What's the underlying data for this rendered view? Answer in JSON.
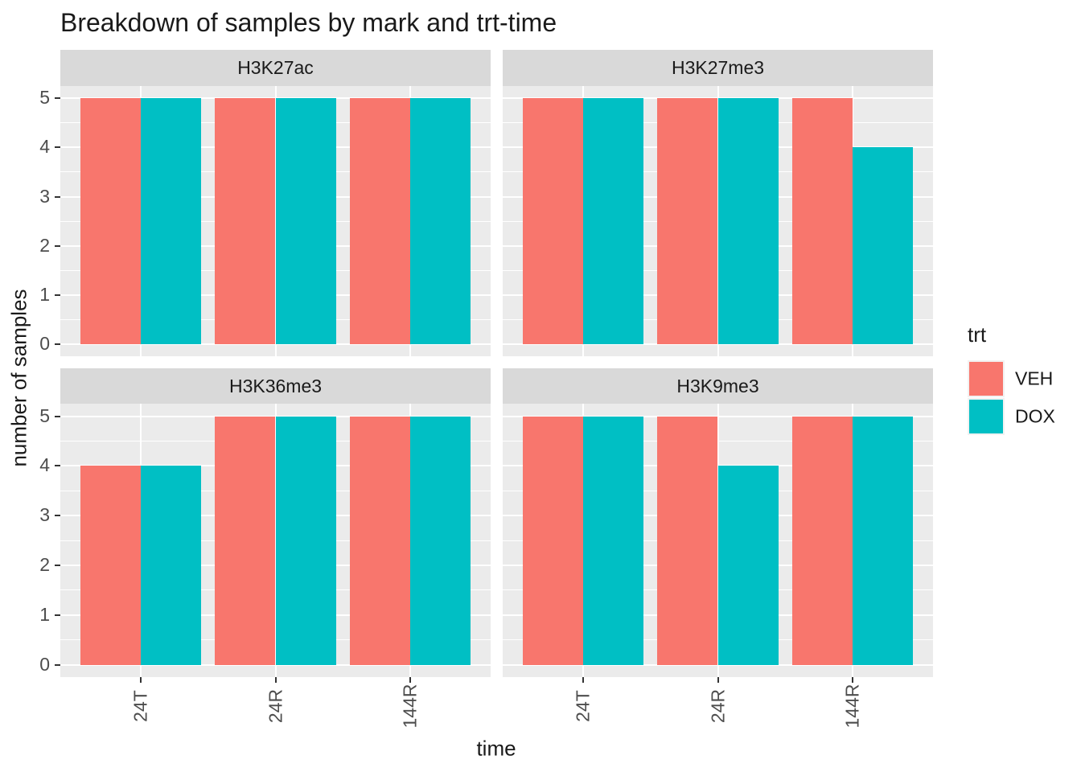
{
  "chart_data": {
    "type": "bar",
    "title": "Breakdown of samples by mark and trt-time",
    "xlabel": "time",
    "ylabel": "number of samples",
    "categories": [
      "24T",
      "24R",
      "144R"
    ],
    "y_ticks": [
      "0",
      "1",
      "2",
      "3",
      "4",
      "5"
    ],
    "ylim": [
      0,
      5
    ],
    "grid": true,
    "legend_position": "right",
    "legend_title": "trt",
    "legend": [
      {
        "label": "VEH",
        "color": "#F8766D"
      },
      {
        "label": "DOX",
        "color": "#00BFC4"
      }
    ],
    "facets": [
      {
        "name": "H3K27ac",
        "series": [
          {
            "name": "VEH",
            "values": [
              5,
              5,
              5
            ]
          },
          {
            "name": "DOX",
            "values": [
              5,
              5,
              5
            ]
          }
        ]
      },
      {
        "name": "H3K27me3",
        "series": [
          {
            "name": "VEH",
            "values": [
              5,
              5,
              5
            ]
          },
          {
            "name": "DOX",
            "values": [
              5,
              5,
              4
            ]
          }
        ]
      },
      {
        "name": "H3K36me3",
        "series": [
          {
            "name": "VEH",
            "values": [
              4,
              5,
              5
            ]
          },
          {
            "name": "DOX",
            "values": [
              4,
              5,
              5
            ]
          }
        ]
      },
      {
        "name": "H3K9me3",
        "series": [
          {
            "name": "VEH",
            "values": [
              5,
              5,
              5
            ]
          },
          {
            "name": "DOX",
            "values": [
              5,
              4,
              5
            ]
          }
        ]
      }
    ],
    "colors": {
      "panel_background": "#EBEBEB",
      "strip_background": "#D9D9D9",
      "gridline": "#FFFFFF",
      "axis_text": "#4D4D4D",
      "text": "#1A1A1A"
    }
  }
}
